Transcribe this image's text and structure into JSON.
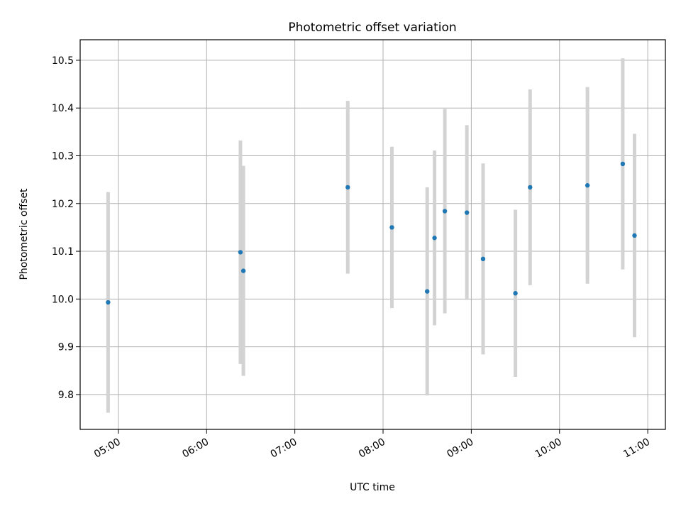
{
  "chart_data": {
    "type": "scatter",
    "title": "Photometric offset variation",
    "xlabel": "UTC time",
    "ylabel": "Photometric offset",
    "x_axis_kind": "time",
    "x_tick_labels": [
      "05:00",
      "06:00",
      "07:00",
      "08:00",
      "09:00",
      "10:00",
      "11:00"
    ],
    "xlim": [
      "04:34",
      "11:12"
    ],
    "ylim": [
      9.727,
      10.543
    ],
    "y_ticks": [
      9.8,
      9.9,
      10.0,
      10.1,
      10.2,
      10.3,
      10.4,
      10.5
    ],
    "y_tick_labels": [
      "9.8",
      "9.9",
      "10.0",
      "10.1",
      "10.2",
      "10.3",
      "10.4",
      "10.5"
    ],
    "grid": true,
    "colors": {
      "point": "#1f77b4",
      "errorbar": "#d3d3d3",
      "grid": "#b0b0b0"
    },
    "series": [
      {
        "points": [
          {
            "x": "04:53",
            "y": 9.993,
            "err": 0.231
          },
          {
            "x": "06:23",
            "y": 10.098,
            "err": 0.234
          },
          {
            "x": "06:25",
            "y": 10.059,
            "err": 0.22
          },
          {
            "x": "07:36",
            "y": 10.234,
            "err": 0.181
          },
          {
            "x": "08:06",
            "y": 10.15,
            "err": 0.169
          },
          {
            "x": "08:30",
            "y": 10.016,
            "err": 0.218
          },
          {
            "x": "08:35",
            "y": 10.128,
            "err": 0.183
          },
          {
            "x": "08:42",
            "y": 10.184,
            "err": 0.214
          },
          {
            "x": "08:57",
            "y": 10.181,
            "err": 0.183
          },
          {
            "x": "09:08",
            "y": 10.084,
            "err": 0.2
          },
          {
            "x": "09:30",
            "y": 10.012,
            "err": 0.175
          },
          {
            "x": "09:40",
            "y": 10.234,
            "err": 0.205
          },
          {
            "x": "10:19",
            "y": 10.238,
            "err": 0.206
          },
          {
            "x": "10:43",
            "y": 10.283,
            "err": 0.221
          },
          {
            "x": "10:51",
            "y": 10.133,
            "err": 0.213
          }
        ]
      }
    ]
  }
}
